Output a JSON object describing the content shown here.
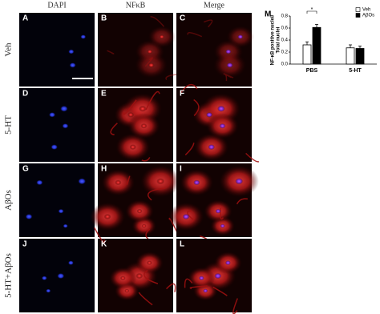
{
  "figure": {
    "column_headers": [
      "DAPI",
      "NFκB",
      "Merge"
    ],
    "row_labels": [
      "Veh",
      "5-HT",
      "AβOs",
      "5-HT+AβOs"
    ],
    "panel_letters": [
      "A",
      "B",
      "C",
      "D",
      "E",
      "F",
      "G",
      "H",
      "I",
      "J",
      "K",
      "L"
    ]
  },
  "chart_data": {
    "type": "bar",
    "panel_letter": "M",
    "ylabel": [
      "NF-κB positive nuclei/",
      "Total nuclei"
    ],
    "categories": [
      "PBS",
      "5-HT"
    ],
    "series": [
      {
        "name": "Veh",
        "color": "#ffffff",
        "values": [
          0.32,
          0.27
        ],
        "errors": [
          0.05,
          0.05
        ]
      },
      {
        "name": "AβOs",
        "color": "#000000",
        "values": [
          0.61,
          0.26
        ],
        "errors": [
          0.05,
          0.04
        ]
      }
    ],
    "ylim": [
      0,
      0.8
    ],
    "yticks": [
      {
        "value": 0,
        "label": "0.0"
      },
      {
        "value": 0.2,
        "label": "0.2"
      },
      {
        "value": 0.4,
        "label": "0.4"
      },
      {
        "value": 0.6,
        "label": "0.6"
      },
      {
        "value": 0.8,
        "label": "0.8"
      }
    ],
    "annotation": "*",
    "legend": "top-right"
  }
}
